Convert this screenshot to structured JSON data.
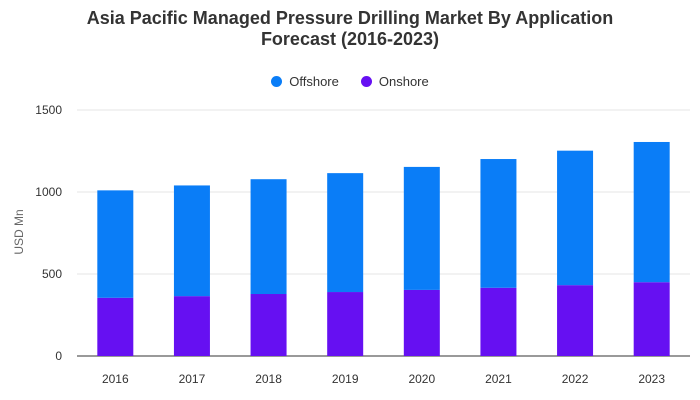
{
  "chart_data": {
    "type": "bar",
    "stacked": true,
    "title_lines": [
      "Asia Pacific Managed Pressure Drilling Market By Application",
      "Forecast (2016-2023)"
    ],
    "ylabel": "USD Mn",
    "xlabel": "",
    "ylim": [
      0,
      1500
    ],
    "yticks": [
      0,
      500,
      1000,
      1500
    ],
    "grid": true,
    "legend_position": "top",
    "categories": [
      "2016",
      "2017",
      "2018",
      "2019",
      "2020",
      "2021",
      "2022",
      "2023"
    ],
    "series": [
      {
        "name": "Offshore",
        "color": "#0a7df7",
        "values": [
          655,
          675,
          700,
          725,
          750,
          785,
          820,
          855
        ]
      },
      {
        "name": "Onshore",
        "color": "#6610f2",
        "values": [
          355,
          365,
          378,
          390,
          403,
          416,
          432,
          450
        ]
      }
    ]
  }
}
